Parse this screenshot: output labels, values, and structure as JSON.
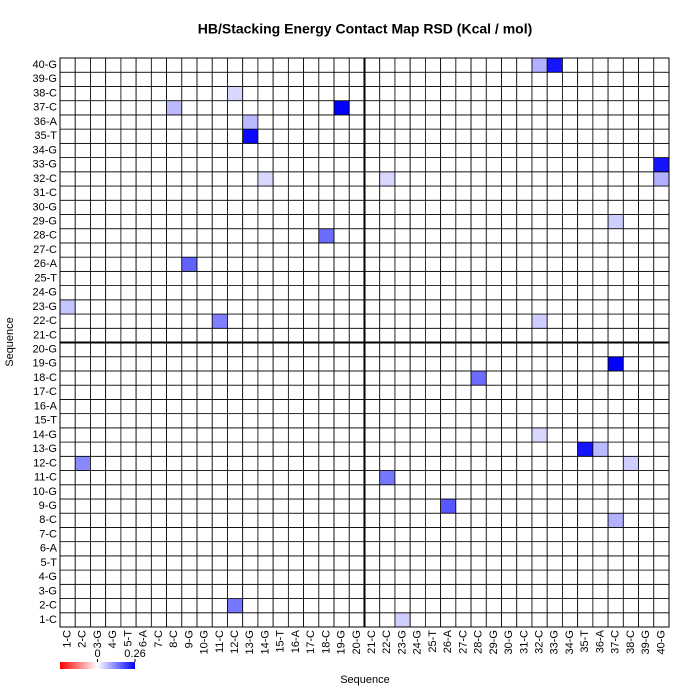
{
  "chart_data": {
    "type": "heatmap",
    "title": "HB/Stacking Energy Contact Map RSD (Kcal / mol)",
    "xlabel": "Sequence",
    "ylabel": "Sequence",
    "x": [
      "1-C",
      "2-C",
      "3-G",
      "4-G",
      "5-T",
      "6-A",
      "7-C",
      "8-C",
      "9-G",
      "10-G",
      "11-C",
      "12-C",
      "13-G",
      "14-G",
      "15-T",
      "16-A",
      "17-C",
      "18-C",
      "19-G",
      "20-G",
      "21-C",
      "22-C",
      "23-G",
      "24-G",
      "25-T",
      "26-A",
      "27-C",
      "28-C",
      "29-G",
      "30-G",
      "31-C",
      "32-C",
      "33-G",
      "34-G",
      "35-T",
      "36-A",
      "37-C",
      "38-C",
      "39-G",
      "40-G"
    ],
    "y": [
      "1-C",
      "2-C",
      "3-G",
      "4-G",
      "5-T",
      "6-A",
      "7-C",
      "8-C",
      "9-G",
      "10-G",
      "11-C",
      "12-C",
      "13-G",
      "14-G",
      "15-T",
      "16-A",
      "17-C",
      "18-C",
      "19-G",
      "20-G",
      "21-C",
      "22-C",
      "23-G",
      "24-G",
      "25-T",
      "26-A",
      "27-C",
      "28-C",
      "29-G",
      "30-G",
      "31-C",
      "32-C",
      "33-G",
      "34-G",
      "35-T",
      "36-A",
      "37-C",
      "38-C",
      "39-G",
      "40-G"
    ],
    "z": [
      [
        0,
        0,
        0,
        0,
        0,
        0,
        0,
        0,
        0,
        0,
        0,
        0,
        0,
        0,
        0,
        0,
        0,
        0,
        0,
        0,
        0,
        0,
        0.05,
        0,
        0,
        0,
        0,
        0,
        0,
        0,
        0,
        0,
        0,
        0,
        0,
        0,
        0,
        0,
        0,
        0
      ],
      [
        0,
        0,
        0,
        0,
        0,
        0,
        0,
        0,
        0,
        0,
        0,
        0.14,
        0,
        0,
        0,
        0,
        0,
        0,
        0,
        0,
        0,
        0,
        0,
        0,
        0,
        0,
        0,
        0,
        0,
        0,
        0,
        0,
        0,
        0,
        0,
        0,
        0,
        0,
        0,
        0
      ],
      [
        0,
        0,
        0,
        0,
        0,
        0,
        0,
        0,
        0,
        0,
        0,
        0,
        0,
        0,
        0,
        0,
        0,
        0,
        0,
        0,
        0,
        0,
        0,
        0,
        0,
        0,
        0,
        0,
        0,
        0,
        0,
        0,
        0,
        0,
        0,
        0,
        0,
        0,
        0,
        0
      ],
      [
        0,
        0,
        0,
        0,
        0,
        0,
        0,
        0,
        0,
        0,
        0,
        0,
        0,
        0,
        0,
        0,
        0,
        0,
        0,
        0,
        0,
        0,
        0,
        0,
        0,
        0,
        0,
        0,
        0,
        0,
        0,
        0,
        0,
        0,
        0,
        0,
        0,
        0,
        0,
        0
      ],
      [
        0,
        0,
        0,
        0,
        0,
        0,
        0,
        0,
        0,
        0,
        0,
        0,
        0,
        0,
        0,
        0,
        0,
        0,
        0,
        0,
        0,
        0,
        0,
        0,
        0,
        0,
        0,
        0,
        0,
        0,
        0,
        0,
        0,
        0,
        0,
        0,
        0,
        0,
        0,
        0
      ],
      [
        0,
        0,
        0,
        0,
        0,
        0,
        0,
        0,
        0,
        0,
        0,
        0,
        0,
        0,
        0,
        0,
        0,
        0,
        0,
        0,
        0,
        0,
        0,
        0,
        0,
        0,
        0,
        0,
        0,
        0,
        0,
        0,
        0,
        0,
        0,
        0,
        0,
        0,
        0,
        0
      ],
      [
        0,
        0,
        0,
        0,
        0,
        0,
        0,
        0,
        0,
        0,
        0,
        0,
        0,
        0,
        0,
        0,
        0,
        0,
        0,
        0,
        0,
        0,
        0,
        0,
        0,
        0,
        0,
        0,
        0,
        0,
        0,
        0,
        0,
        0,
        0,
        0,
        0,
        0,
        0,
        0
      ],
      [
        0,
        0,
        0,
        0,
        0,
        0,
        0,
        0,
        0,
        0,
        0,
        0,
        0,
        0,
        0,
        0,
        0,
        0,
        0,
        0,
        0,
        0,
        0,
        0,
        0,
        0,
        0,
        0,
        0,
        0,
        0,
        0,
        0,
        0,
        0,
        0,
        0.08,
        0,
        0,
        0
      ],
      [
        0,
        0,
        0,
        0,
        0,
        0,
        0,
        0,
        0,
        0,
        0,
        0,
        0,
        0,
        0,
        0,
        0,
        0,
        0,
        0,
        0,
        0,
        0,
        0,
        0,
        0.17,
        0,
        0,
        0,
        0,
        0,
        0,
        0,
        0,
        0,
        0,
        0,
        0,
        0,
        0
      ],
      [
        0,
        0,
        0,
        0,
        0,
        0,
        0,
        0,
        0,
        0,
        0,
        0,
        0,
        0,
        0,
        0,
        0,
        0,
        0,
        0,
        0,
        0,
        0,
        0,
        0,
        0,
        0,
        0,
        0,
        0,
        0,
        0,
        0,
        0,
        0,
        0,
        0,
        0,
        0,
        0
      ],
      [
        0,
        0,
        0,
        0,
        0,
        0,
        0,
        0,
        0,
        0,
        0,
        0,
        0,
        0,
        0,
        0,
        0,
        0,
        0,
        0,
        0,
        0.14,
        0,
        0,
        0,
        0,
        0,
        0,
        0,
        0,
        0,
        0,
        0,
        0,
        0,
        0,
        0,
        0,
        0,
        0
      ],
      [
        0,
        0.12,
        0,
        0,
        0,
        0,
        0,
        0,
        0,
        0,
        0,
        0,
        0,
        0,
        0,
        0,
        0,
        0,
        0,
        0,
        0,
        0,
        0,
        0,
        0,
        0,
        0,
        0,
        0,
        0,
        0,
        0,
        0,
        0,
        0,
        0,
        0,
        0.05,
        0,
        0
      ],
      [
        0,
        0,
        0,
        0,
        0,
        0,
        0,
        0,
        0,
        0,
        0,
        0,
        0,
        0,
        0,
        0,
        0,
        0,
        0,
        0,
        0,
        0,
        0,
        0,
        0,
        0,
        0,
        0,
        0,
        0,
        0,
        0,
        0,
        0,
        0.24,
        0.07,
        0,
        0,
        0,
        0
      ],
      [
        0,
        0,
        0,
        0,
        0,
        0,
        0,
        0,
        0,
        0,
        0,
        0,
        0,
        0,
        0,
        0,
        0,
        0,
        0,
        0,
        0,
        0,
        0,
        0,
        0,
        0,
        0,
        0,
        0,
        0,
        0,
        0.04,
        0,
        0,
        0,
        0,
        0,
        0,
        0,
        0
      ],
      [
        0,
        0,
        0,
        0,
        0,
        0,
        0,
        0,
        0,
        0,
        0,
        0,
        0,
        0,
        0,
        0,
        0,
        0,
        0,
        0,
        0,
        0,
        0,
        0,
        0,
        0,
        0,
        0,
        0,
        0,
        0,
        0,
        0,
        0,
        0,
        0,
        0,
        0,
        0,
        0
      ],
      [
        0,
        0,
        0,
        0,
        0,
        0,
        0,
        0,
        0,
        0,
        0,
        0,
        0,
        0,
        0,
        0,
        0,
        0,
        0,
        0,
        0,
        0,
        0,
        0,
        0,
        0,
        0,
        0,
        0,
        0,
        0,
        0,
        0,
        0,
        0,
        0,
        0,
        0,
        0,
        0
      ],
      [
        0,
        0,
        0,
        0,
        0,
        0,
        0,
        0,
        0,
        0,
        0,
        0,
        0,
        0,
        0,
        0,
        0,
        0,
        0,
        0,
        0,
        0,
        0,
        0,
        0,
        0,
        0,
        0,
        0,
        0,
        0,
        0,
        0,
        0,
        0,
        0,
        0,
        0,
        0,
        0
      ],
      [
        0,
        0,
        0,
        0,
        0,
        0,
        0,
        0,
        0,
        0,
        0,
        0,
        0,
        0,
        0,
        0,
        0,
        0,
        0,
        0,
        0,
        0,
        0,
        0,
        0,
        0,
        0,
        0.15,
        0,
        0,
        0,
        0,
        0,
        0,
        0,
        0,
        0,
        0,
        0,
        0
      ],
      [
        0,
        0,
        0,
        0,
        0,
        0,
        0,
        0,
        0,
        0,
        0,
        0,
        0,
        0,
        0,
        0,
        0,
        0,
        0,
        0,
        0,
        0,
        0,
        0,
        0,
        0,
        0,
        0,
        0,
        0,
        0,
        0,
        0,
        0,
        0,
        0,
        0.26,
        0,
        0,
        0
      ],
      [
        0,
        0,
        0,
        0,
        0,
        0,
        0,
        0,
        0,
        0,
        0,
        0,
        0,
        0,
        0,
        0,
        0,
        0,
        0,
        0,
        0,
        0,
        0,
        0,
        0,
        0,
        0,
        0,
        0,
        0,
        0,
        0,
        0,
        0,
        0,
        0,
        0,
        0,
        0,
        0
      ],
      [
        0,
        0,
        0,
        0,
        0,
        0,
        0,
        0,
        0,
        0,
        0,
        0,
        0,
        0,
        0,
        0,
        0,
        0,
        0,
        0,
        0,
        0,
        0,
        0,
        0,
        0,
        0,
        0,
        0,
        0,
        0,
        0,
        0,
        0,
        0,
        0,
        0,
        0,
        0,
        0
      ],
      [
        0,
        0,
        0,
        0,
        0,
        0,
        0,
        0,
        0,
        0,
        0.13,
        0,
        0,
        0,
        0,
        0,
        0,
        0,
        0,
        0,
        0,
        0,
        0,
        0,
        0,
        0,
        0,
        0,
        0,
        0,
        0,
        0.05,
        0,
        0,
        0,
        0,
        0,
        0,
        0,
        0
      ],
      [
        0.06,
        0,
        0,
        0,
        0,
        0,
        0,
        0,
        0,
        0,
        0,
        0,
        0,
        0,
        0,
        0,
        0,
        0,
        0,
        0,
        0,
        0,
        0,
        0,
        0,
        0,
        0,
        0,
        0,
        0,
        0,
        0,
        0,
        0,
        0,
        0,
        0,
        0,
        0,
        0
      ],
      [
        0,
        0,
        0,
        0,
        0,
        0,
        0,
        0,
        0,
        0,
        0,
        0,
        0,
        0,
        0,
        0,
        0,
        0,
        0,
        0,
        0,
        0,
        0,
        0,
        0,
        0,
        0,
        0,
        0,
        0,
        0,
        0,
        0,
        0,
        0,
        0,
        0,
        0,
        0,
        0
      ],
      [
        0,
        0,
        0,
        0,
        0,
        0,
        0,
        0,
        0,
        0,
        0,
        0,
        0,
        0,
        0,
        0,
        0,
        0,
        0,
        0,
        0,
        0,
        0,
        0,
        0,
        0,
        0,
        0,
        0,
        0,
        0,
        0,
        0,
        0,
        0,
        0,
        0,
        0,
        0,
        0
      ],
      [
        0,
        0,
        0,
        0,
        0,
        0,
        0,
        0,
        0.16,
        0,
        0,
        0,
        0,
        0,
        0,
        0,
        0,
        0,
        0,
        0,
        0,
        0,
        0,
        0,
        0,
        0,
        0,
        0,
        0,
        0,
        0,
        0,
        0,
        0,
        0,
        0,
        0,
        0,
        0,
        0
      ],
      [
        0,
        0,
        0,
        0,
        0,
        0,
        0,
        0,
        0,
        0,
        0,
        0,
        0,
        0,
        0,
        0,
        0,
        0,
        0,
        0,
        0,
        0,
        0,
        0,
        0,
        0,
        0,
        0,
        0,
        0,
        0,
        0,
        0,
        0,
        0,
        0,
        0,
        0,
        0,
        0
      ],
      [
        0,
        0,
        0,
        0,
        0,
        0,
        0,
        0,
        0,
        0,
        0,
        0,
        0,
        0,
        0,
        0,
        0,
        0.15,
        0,
        0,
        0,
        0,
        0,
        0,
        0,
        0,
        0,
        0,
        0,
        0,
        0,
        0,
        0,
        0,
        0,
        0,
        0,
        0,
        0,
        0
      ],
      [
        0,
        0,
        0,
        0,
        0,
        0,
        0,
        0,
        0,
        0,
        0,
        0,
        0,
        0,
        0,
        0,
        0,
        0,
        0,
        0,
        0,
        0,
        0,
        0,
        0,
        0,
        0,
        0,
        0,
        0,
        0,
        0,
        0,
        0,
        0,
        0,
        0.05,
        0,
        0,
        0
      ],
      [
        0,
        0,
        0,
        0,
        0,
        0,
        0,
        0,
        0,
        0,
        0,
        0,
        0,
        0,
        0,
        0,
        0,
        0,
        0,
        0,
        0,
        0,
        0,
        0,
        0,
        0,
        0,
        0,
        0,
        0,
        0,
        0,
        0,
        0,
        0,
        0,
        0,
        0,
        0,
        0
      ],
      [
        0,
        0,
        0,
        0,
        0,
        0,
        0,
        0,
        0,
        0,
        0,
        0,
        0,
        0,
        0,
        0,
        0,
        0,
        0,
        0,
        0,
        0,
        0,
        0,
        0,
        0,
        0,
        0,
        0,
        0,
        0,
        0,
        0,
        0,
        0,
        0,
        0,
        0,
        0,
        0
      ],
      [
        0,
        0,
        0,
        0,
        0,
        0,
        0,
        0,
        0,
        0,
        0,
        0,
        0,
        0.04,
        0,
        0,
        0,
        0,
        0,
        0,
        0,
        0.04,
        0,
        0,
        0,
        0,
        0,
        0,
        0,
        0,
        0,
        0,
        0,
        0,
        0,
        0,
        0,
        0,
        0,
        0.08
      ],
      [
        0,
        0,
        0,
        0,
        0,
        0,
        0,
        0,
        0,
        0,
        0,
        0,
        0,
        0,
        0,
        0,
        0,
        0,
        0,
        0,
        0,
        0,
        0,
        0,
        0,
        0,
        0,
        0,
        0,
        0,
        0,
        0,
        0,
        0,
        0,
        0,
        0,
        0,
        0,
        0.24
      ],
      [
        0,
        0,
        0,
        0,
        0,
        0,
        0,
        0,
        0,
        0,
        0,
        0,
        0,
        0,
        0,
        0,
        0,
        0,
        0,
        0,
        0,
        0,
        0,
        0,
        0,
        0,
        0,
        0,
        0,
        0,
        0,
        0,
        0,
        0,
        0,
        0,
        0,
        0,
        0,
        0
      ],
      [
        0,
        0,
        0,
        0,
        0,
        0,
        0,
        0,
        0,
        0,
        0,
        0,
        0.25,
        0,
        0,
        0,
        0,
        0,
        0,
        0,
        0,
        0,
        0,
        0,
        0,
        0,
        0,
        0,
        0,
        0,
        0,
        0,
        0,
        0,
        0,
        0,
        0,
        0,
        0,
        0
      ],
      [
        0,
        0,
        0,
        0,
        0,
        0,
        0,
        0,
        0,
        0,
        0,
        0,
        0.07,
        0,
        0,
        0,
        0,
        0,
        0,
        0,
        0,
        0,
        0,
        0,
        0,
        0,
        0,
        0,
        0,
        0,
        0,
        0,
        0,
        0,
        0,
        0,
        0,
        0,
        0,
        0
      ],
      [
        0,
        0,
        0,
        0,
        0,
        0,
        0,
        0.07,
        0,
        0,
        0,
        0,
        0,
        0,
        0,
        0,
        0,
        0,
        0.26,
        0,
        0,
        0,
        0,
        0,
        0,
        0,
        0,
        0,
        0,
        0,
        0,
        0,
        0,
        0,
        0,
        0,
        0,
        0,
        0,
        0
      ],
      [
        0,
        0,
        0,
        0,
        0,
        0,
        0,
        0,
        0,
        0,
        0,
        0.04,
        0,
        0,
        0,
        0,
        0,
        0,
        0,
        0,
        0,
        0,
        0,
        0,
        0,
        0,
        0,
        0,
        0,
        0,
        0,
        0,
        0,
        0,
        0,
        0,
        0,
        0,
        0,
        0
      ],
      [
        0,
        0,
        0,
        0,
        0,
        0,
        0,
        0,
        0,
        0,
        0,
        0,
        0,
        0,
        0,
        0,
        0,
        0,
        0,
        0,
        0,
        0,
        0,
        0,
        0,
        0,
        0,
        0,
        0,
        0,
        0,
        0,
        0,
        0,
        0,
        0,
        0,
        0,
        0,
        0
      ],
      [
        0,
        0,
        0,
        0,
        0,
        0,
        0,
        0,
        0,
        0,
        0,
        0,
        0,
        0,
        0,
        0,
        0,
        0,
        0,
        0,
        0,
        0,
        0,
        0,
        0,
        0,
        0,
        0,
        0,
        0,
        0,
        0.08,
        0.24,
        0,
        0,
        0,
        0,
        0,
        0,
        0
      ]
    ],
    "zlim": [
      -0.26,
      0.26
    ],
    "colorbar_ticks": [
      0,
      0.26
    ],
    "colors": [
      "#ff0000",
      "#ffffff",
      "#0000ff"
    ]
  }
}
